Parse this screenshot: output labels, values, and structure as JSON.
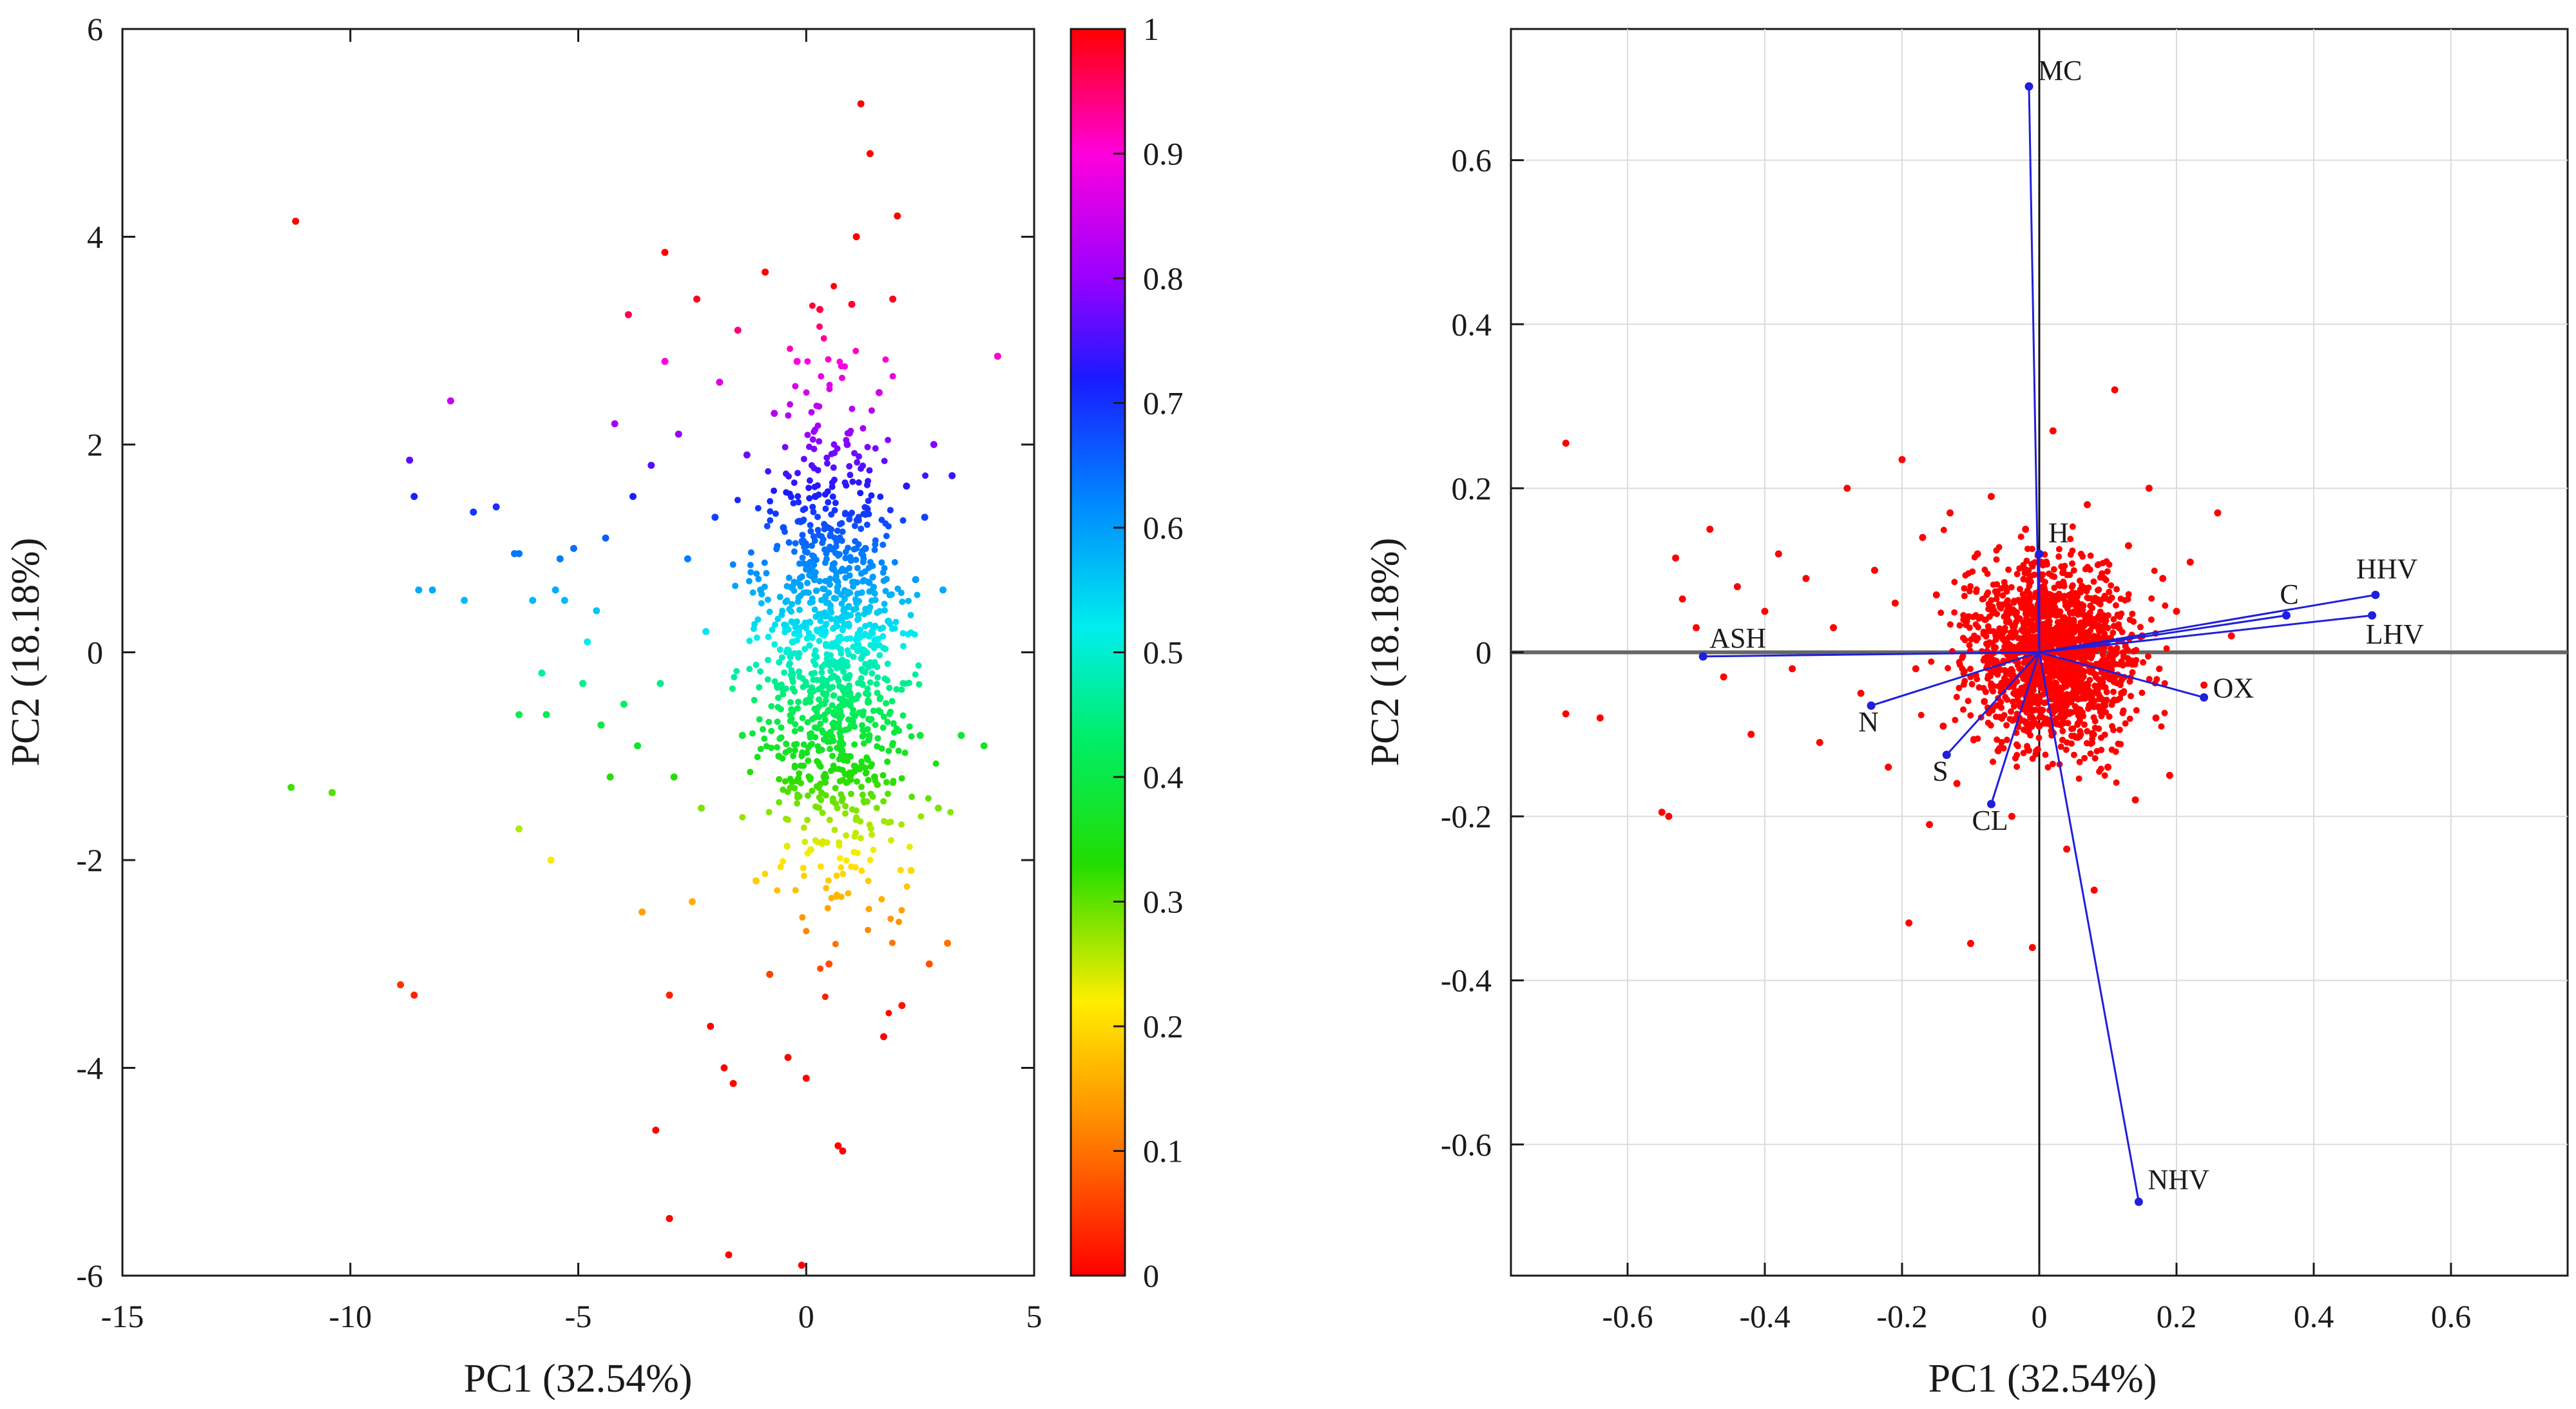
{
  "chart_data": [
    {
      "type": "scatter",
      "title": "",
      "xlabel": "PC1 (32.54%)",
      "ylabel": "PC2 (18.18%)",
      "xlim": [
        -15,
        5
      ],
      "ylim": [
        -6,
        6
      ],
      "xticks": [
        -15,
        -10,
        -5,
        0,
        5
      ],
      "yticks": [
        -6,
        -4,
        -2,
        0,
        2,
        4,
        6
      ],
      "grid": false,
      "color_by": "PC2 rank (0 = red ... 1 = red, rainbow colormap)",
      "points": [
        [
          -11.2,
          4.15
        ],
        [
          -11.3,
          -1.3
        ],
        [
          -10.4,
          -1.35
        ],
        [
          -8.9,
          -3.2
        ],
        [
          -8.6,
          -3.3
        ],
        [
          -8.7,
          1.85
        ],
        [
          -8.6,
          1.5
        ],
        [
          -8.5,
          0.6
        ],
        [
          -8.2,
          0.6
        ],
        [
          -7.8,
          2.42
        ],
        [
          -7.5,
          0.5
        ],
        [
          -7.3,
          1.35
        ],
        [
          -6.8,
          1.4
        ],
        [
          -6.4,
          0.95
        ],
        [
          -6.3,
          0.95
        ],
        [
          -6.3,
          -0.6
        ],
        [
          -6.3,
          -1.7
        ],
        [
          -6.0,
          0.5
        ],
        [
          -5.8,
          -0.2
        ],
        [
          -5.7,
          -0.6
        ],
        [
          -5.6,
          -2.0
        ],
        [
          -5.5,
          0.6
        ],
        [
          -5.4,
          0.9
        ],
        [
          -5.3,
          0.5
        ],
        [
          -5.1,
          1.0
        ],
        [
          -4.9,
          -0.3
        ],
        [
          -4.8,
          0.1
        ],
        [
          -4.6,
          0.4
        ],
        [
          -4.5,
          -0.7
        ],
        [
          -4.4,
          1.1
        ],
        [
          -4.3,
          -1.2
        ],
        [
          -4.2,
          2.2
        ],
        [
          -4.0,
          -0.5
        ],
        [
          -3.9,
          3.25
        ],
        [
          -3.8,
          1.5
        ],
        [
          -3.7,
          -0.9
        ],
        [
          -3.6,
          -2.5
        ],
        [
          -3.4,
          1.8
        ],
        [
          -3.3,
          -4.6
        ],
        [
          -3.2,
          -0.3
        ],
        [
          -3.1,
          2.8
        ],
        [
          -3.1,
          3.85
        ],
        [
          -3.0,
          -5.45
        ],
        [
          -3.0,
          -3.3
        ],
        [
          -2.9,
          -1.2
        ],
        [
          -2.8,
          2.1
        ],
        [
          -2.6,
          0.9
        ],
        [
          -2.5,
          -2.4
        ],
        [
          -2.4,
          3.4
        ],
        [
          -2.3,
          -1.5
        ],
        [
          -2.2,
          0.2
        ],
        [
          -2.1,
          -3.6
        ],
        [
          -2.0,
          1.3
        ],
        [
          -1.9,
          2.6
        ],
        [
          -1.8,
          -4.0
        ],
        [
          -1.7,
          -5.8
        ],
        [
          -1.6,
          -4.15
        ],
        [
          -1.5,
          3.1
        ],
        [
          -1.4,
          -0.8
        ],
        [
          -1.3,
          1.9
        ],
        [
          -1.1,
          -2.2
        ],
        [
          -1.0,
          0.6
        ],
        [
          -0.9,
          3.66
        ],
        [
          -0.8,
          -3.1
        ],
        [
          -0.7,
          2.3
        ],
        [
          -0.6,
          -1.0
        ],
        [
          -0.5,
          1.2
        ],
        [
          -0.4,
          -3.9
        ],
        [
          -0.3,
          0.1
        ],
        [
          -0.2,
          2.8
        ],
        [
          -0.1,
          -5.9
        ],
        [
          0.0,
          -4.1
        ],
        [
          0.1,
          -1.9
        ],
        [
          0.2,
          1.5
        ],
        [
          0.3,
          3.3
        ],
        [
          0.4,
          -0.4
        ],
        [
          0.5,
          -3.0
        ],
        [
          0.6,
          0.8
        ],
        [
          0.7,
          -4.75
        ],
        [
          0.8,
          -4.8
        ],
        [
          0.9,
          2.0
        ],
        [
          1.0,
          3.35
        ],
        [
          1.1,
          4.0
        ],
        [
          1.2,
          5.28
        ],
        [
          1.3,
          1.0
        ],
        [
          1.4,
          4.8
        ],
        [
          1.5,
          -1.2
        ],
        [
          1.6,
          2.5
        ],
        [
          1.7,
          -3.7
        ],
        [
          1.8,
          0.3
        ],
        [
          1.9,
          3.4
        ],
        [
          2.0,
          4.2
        ],
        [
          2.1,
          -3.4
        ],
        [
          2.2,
          1.6
        ],
        [
          2.3,
          -2.1
        ],
        [
          2.4,
          0.7
        ],
        [
          2.5,
          -0.8
        ],
        [
          2.6,
          1.3
        ],
        [
          2.7,
          -3.0
        ],
        [
          2.8,
          2.0
        ],
        [
          2.9,
          -1.5
        ],
        [
          3.0,
          0.6
        ],
        [
          3.1,
          -2.8
        ],
        [
          3.2,
          1.7
        ],
        [
          3.4,
          -0.8
        ],
        [
          3.9,
          -0.9
        ],
        [
          4.2,
          2.85
        ]
      ],
      "colorbar": {
        "min": 0,
        "max": 1,
        "ticks": [
          "0",
          "0.1",
          "0.2",
          "0.3",
          "0.4",
          "0.5",
          "0.6",
          "0.7",
          "0.8",
          "0.9",
          "1"
        ]
      }
    },
    {
      "type": "scatter",
      "subtype": "biplot",
      "title": "",
      "xlabel": "PC1 (32.54%)",
      "ylabel": "PC2 (18.18%)",
      "xlim": [
        -0.77,
        0.77
      ],
      "ylim": [
        -0.76,
        0.76
      ],
      "xticks": [
        -0.6,
        -0.4,
        -0.2,
        0,
        0.2,
        0.4,
        0.6
      ],
      "yticks": [
        -0.6,
        -0.4,
        -0.2,
        0,
        0.2,
        0.4,
        0.6
      ],
      "grid": true,
      "point_color": "#ff0000",
      "vector_color": "#1f1fdd",
      "points": [
        [
          -0.69,
          0.255
        ],
        [
          -0.69,
          -0.075
        ],
        [
          -0.64,
          -0.08
        ],
        [
          -0.55,
          -0.195
        ],
        [
          -0.54,
          -0.2
        ],
        [
          -0.53,
          0.115
        ],
        [
          -0.52,
          0.065
        ],
        [
          -0.5,
          0.03
        ],
        [
          -0.48,
          0.15
        ],
        [
          -0.46,
          -0.03
        ],
        [
          -0.44,
          0.08
        ],
        [
          -0.42,
          -0.1
        ],
        [
          -0.4,
          0.05
        ],
        [
          -0.38,
          0.12
        ],
        [
          -0.36,
          -0.02
        ],
        [
          -0.34,
          0.09
        ],
        [
          -0.32,
          -0.11
        ],
        [
          -0.3,
          0.03
        ],
        [
          -0.28,
          0.2
        ],
        [
          -0.26,
          -0.05
        ],
        [
          -0.24,
          0.1
        ],
        [
          -0.22,
          -0.14
        ],
        [
          -0.21,
          0.06
        ],
        [
          -0.2,
          0.235
        ],
        [
          -0.19,
          -0.33
        ],
        [
          -0.18,
          -0.02
        ],
        [
          -0.17,
          0.14
        ],
        [
          -0.16,
          -0.21
        ],
        [
          -0.15,
          0.07
        ],
        [
          -0.14,
          -0.09
        ],
        [
          -0.13,
          0.17
        ],
        [
          -0.12,
          -0.16
        ],
        [
          -0.11,
          0.04
        ],
        [
          -0.1,
          -0.355
        ],
        [
          -0.09,
          0.12
        ],
        [
          -0.08,
          -0.06
        ],
        [
          -0.07,
          0.19
        ],
        [
          -0.06,
          -0.12
        ],
        [
          -0.05,
          0.08
        ],
        [
          -0.04,
          -0.2
        ],
        [
          -0.03,
          0.0
        ],
        [
          -0.02,
          0.15
        ],
        [
          -0.01,
          -0.36
        ],
        [
          0.0,
          -0.09
        ],
        [
          0.01,
          0.11
        ],
        [
          0.02,
          0.27
        ],
        [
          0.03,
          -0.03
        ],
        [
          0.04,
          -0.24
        ],
        [
          0.05,
          0.06
        ],
        [
          0.06,
          -0.1
        ],
        [
          0.07,
          0.18
        ],
        [
          0.08,
          -0.29
        ],
        [
          0.09,
          0.04
        ],
        [
          0.1,
          -0.14
        ],
        [
          0.11,
          0.32
        ],
        [
          0.12,
          -0.05
        ],
        [
          0.13,
          0.13
        ],
        [
          0.14,
          -0.18
        ],
        [
          0.15,
          0.02
        ],
        [
          0.16,
          0.2
        ],
        [
          0.17,
          -0.08
        ],
        [
          0.18,
          0.09
        ],
        [
          0.19,
          -0.15
        ],
        [
          0.2,
          0.05
        ],
        [
          0.22,
          0.11
        ],
        [
          0.24,
          -0.04
        ],
        [
          0.26,
          0.17
        ],
        [
          0.28,
          0.02
        ]
      ],
      "vectors": [
        {
          "name": "MC",
          "x": -0.015,
          "y": 0.69
        },
        {
          "name": "H",
          "x": 0.0,
          "y": 0.12
        },
        {
          "name": "C",
          "x": 0.36,
          "y": 0.045
        },
        {
          "name": "HHV",
          "x": 0.49,
          "y": 0.07
        },
        {
          "name": "LHV",
          "x": 0.485,
          "y": 0.045
        },
        {
          "name": "ASH",
          "x": -0.49,
          "y": -0.005
        },
        {
          "name": "OX",
          "x": 0.24,
          "y": -0.055
        },
        {
          "name": "N",
          "x": -0.245,
          "y": -0.065
        },
        {
          "name": "S",
          "x": -0.135,
          "y": -0.125
        },
        {
          "name": "CL",
          "x": -0.07,
          "y": -0.185
        },
        {
          "name": "NHV",
          "x": 0.145,
          "y": -0.67
        }
      ]
    }
  ]
}
